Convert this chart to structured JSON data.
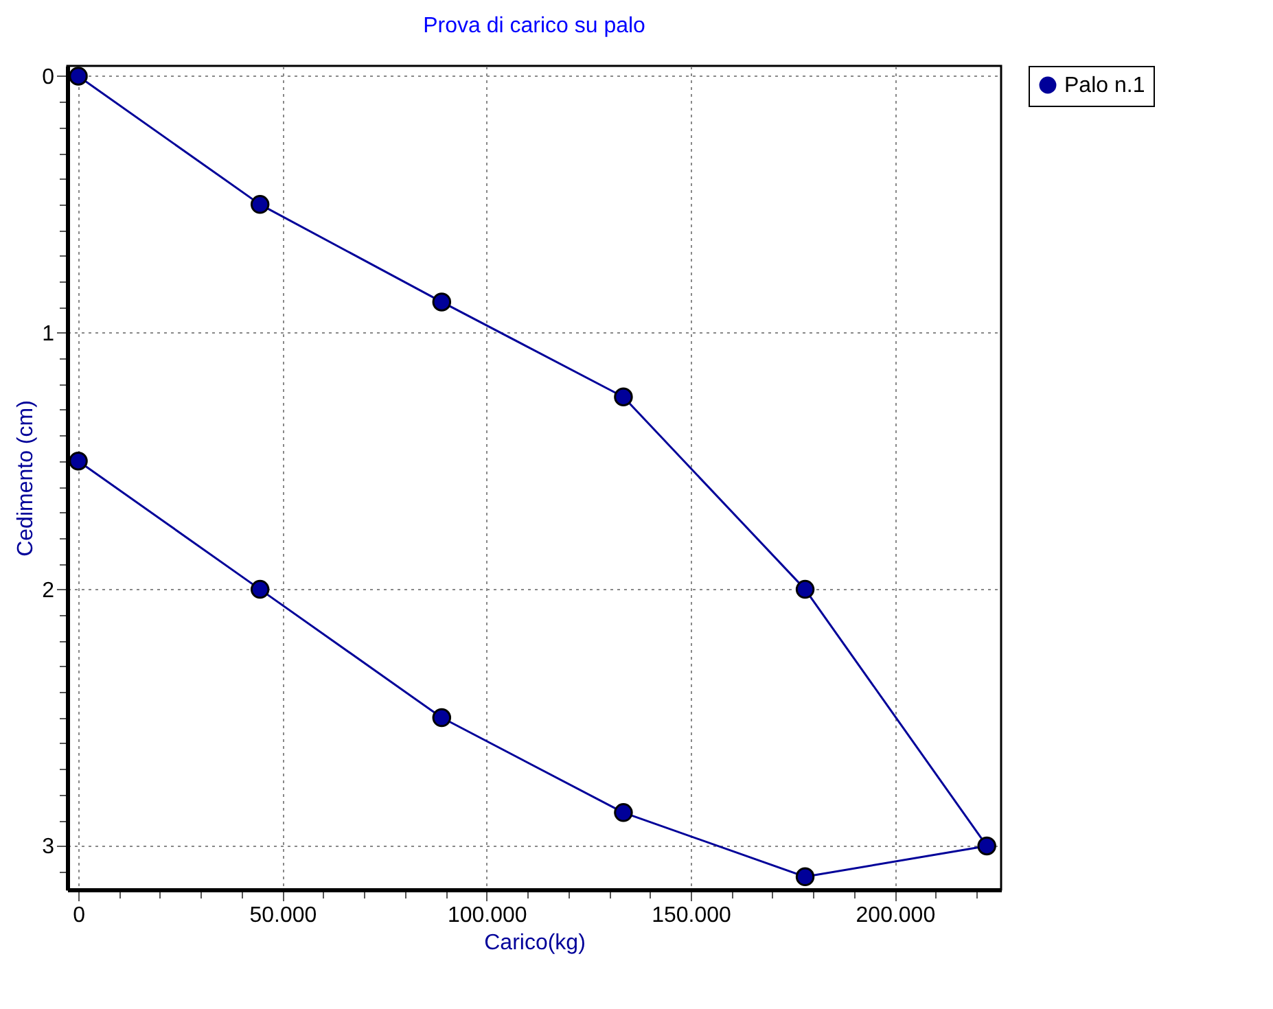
{
  "chart_data": {
    "type": "line",
    "title": "Prova di carico su palo",
    "xlabel": "Carico(kg)",
    "ylabel": "Cedimento (cm)",
    "x": [
      0,
      44500,
      89000,
      133500,
      178000,
      222500,
      178000,
      133500,
      89000,
      44500,
      0
    ],
    "series": [
      {
        "name": "Palo n.1",
        "color": "#000099",
        "values": [
          0,
          0.5,
          0.88,
          1.25,
          2,
          3,
          3.12,
          2.87,
          2.5,
          2,
          1.5
        ]
      }
    ],
    "xlim": [
      -2700,
      226000
    ],
    "ylim": [
      3.17,
      -0.04
    ],
    "xticks": [
      0,
      {
        "value": 10000,
        "label": null
      },
      {
        "value": 20000,
        "label": null
      },
      {
        "value": 30000,
        "label": null
      },
      {
        "value": 40000,
        "label": null
      },
      {
        "value": 50000,
        "label": "50.000"
      },
      {
        "value": 60000,
        "label": null
      },
      {
        "value": 70000,
        "label": null
      },
      {
        "value": 80000,
        "label": null
      },
      {
        "value": 90000,
        "label": null
      },
      {
        "value": 100000,
        "label": "100.000"
      },
      {
        "value": 110000,
        "label": null
      },
      {
        "value": 120000,
        "label": null
      },
      {
        "value": 130000,
        "label": null
      },
      {
        "value": 140000,
        "label": null
      },
      {
        "value": 150000,
        "label": "150.000"
      },
      {
        "value": 160000,
        "label": null
      },
      {
        "value": 170000,
        "label": null
      },
      {
        "value": 180000,
        "label": null
      },
      {
        "value": 190000,
        "label": null
      },
      {
        "value": 200000,
        "label": "200.000"
      },
      {
        "value": 210000,
        "label": null
      },
      {
        "value": 220000,
        "label": null
      }
    ],
    "yticks": [
      0,
      {
        "value": 0.1,
        "label": null
      },
      {
        "value": 0.2,
        "label": null
      },
      {
        "value": 0.3,
        "label": null
      },
      {
        "value": 0.4,
        "label": null
      },
      {
        "value": 0.5,
        "label": null
      },
      {
        "value": 0.6,
        "label": null
      },
      {
        "value": 0.7,
        "label": null
      },
      {
        "value": 0.8,
        "label": null
      },
      {
        "value": 0.9,
        "label": null
      },
      1,
      {
        "value": 1.1,
        "label": null
      },
      {
        "value": 1.2,
        "label": null
      },
      {
        "value": 1.3,
        "label": null
      },
      {
        "value": 1.4,
        "label": null
      },
      {
        "value": 1.5,
        "label": null
      },
      {
        "value": 1.6,
        "label": null
      },
      {
        "value": 1.7,
        "label": null
      },
      {
        "value": 1.8,
        "label": null
      },
      {
        "value": 1.9,
        "label": null
      },
      2,
      {
        "value": 2.1,
        "label": null
      },
      {
        "value": 2.2,
        "label": null
      },
      {
        "value": 2.3,
        "label": null
      },
      {
        "value": 2.4,
        "label": null
      },
      {
        "value": 2.5,
        "label": null
      },
      {
        "value": 2.6,
        "label": null
      },
      {
        "value": 2.7,
        "label": null
      },
      {
        "value": 2.8,
        "label": null
      },
      {
        "value": 2.9,
        "label": null
      },
      3,
      {
        "value": 3.1,
        "label": null
      }
    ],
    "grid": true,
    "legend": "top right",
    "marker": "circle",
    "line_style": "solid"
  }
}
